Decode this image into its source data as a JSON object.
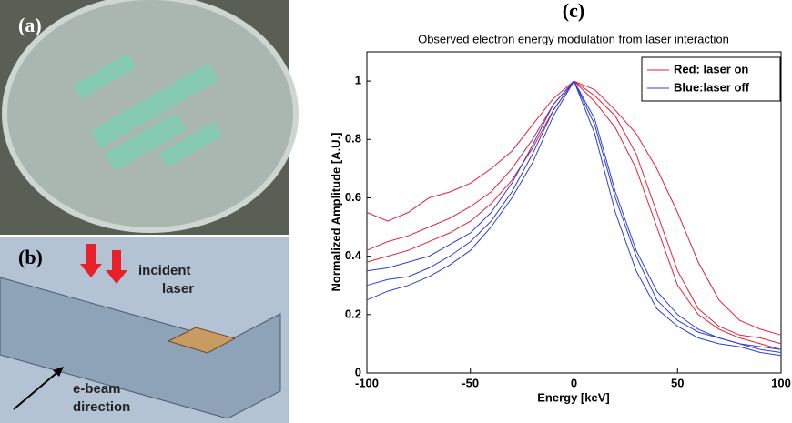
{
  "figure": {
    "panel_a": "(a)",
    "panel_b": "(b)",
    "incident": "incident",
    "laser": "laser",
    "ebeam": "e-beam",
    "direction": "direction"
  },
  "chart_data": {
    "type": "line",
    "panel_label": "(c)",
    "title": "Observed electron energy modulation from laser interaction",
    "x_label": "Energy [keV]",
    "y_label": "Normalized Amplitude [A.U.]",
    "x": [
      -100,
      -90,
      -80,
      -70,
      -60,
      -50,
      -40,
      -30,
      -20,
      -10,
      0,
      10,
      20,
      30,
      40,
      50,
      60,
      70,
      80,
      90,
      100
    ],
    "series": [
      {
        "name": "Red: laser on",
        "color": "#e8203a",
        "values": [
          [
            0.42,
            0.45,
            0.47,
            0.5,
            0.53,
            0.57,
            0.62,
            0.7,
            0.8,
            0.92,
            1.0,
            0.95,
            0.88,
            0.75,
            0.55,
            0.35,
            0.22,
            0.16,
            0.13,
            0.12,
            0.1
          ],
          [
            0.38,
            0.4,
            0.42,
            0.45,
            0.48,
            0.52,
            0.58,
            0.66,
            0.77,
            0.9,
            1.0,
            0.97,
            0.9,
            0.82,
            0.7,
            0.55,
            0.38,
            0.25,
            0.18,
            0.15,
            0.13
          ],
          [
            0.55,
            0.52,
            0.55,
            0.6,
            0.62,
            0.65,
            0.7,
            0.76,
            0.85,
            0.94,
            1.0,
            0.93,
            0.84,
            0.7,
            0.5,
            0.3,
            0.2,
            0.15,
            0.12,
            0.1,
            0.08
          ]
        ]
      },
      {
        "name": "Blue:laser off",
        "color": "#2b3fd6",
        "values": [
          [
            0.3,
            0.32,
            0.33,
            0.36,
            0.4,
            0.45,
            0.52,
            0.62,
            0.75,
            0.9,
            1.0,
            0.85,
            0.6,
            0.4,
            0.25,
            0.18,
            0.14,
            0.12,
            0.1,
            0.08,
            0.07
          ],
          [
            0.35,
            0.36,
            0.38,
            0.4,
            0.44,
            0.48,
            0.55,
            0.65,
            0.78,
            0.92,
            1.0,
            0.82,
            0.55,
            0.35,
            0.22,
            0.16,
            0.12,
            0.1,
            0.09,
            0.07,
            0.06
          ],
          [
            0.25,
            0.28,
            0.3,
            0.33,
            0.37,
            0.42,
            0.5,
            0.6,
            0.72,
            0.88,
            1.0,
            0.87,
            0.62,
            0.42,
            0.28,
            0.2,
            0.15,
            0.12,
            0.1,
            0.09,
            0.08
          ]
        ]
      }
    ],
    "xlim": [
      -100,
      100
    ],
    "xticks": [
      -100,
      -50,
      0,
      50,
      100
    ],
    "ylim": [
      0,
      1.1
    ],
    "yticks": [
      0,
      0.2,
      0.4,
      0.6,
      0.8,
      1
    ],
    "grid": false,
    "legend": "upper right"
  }
}
